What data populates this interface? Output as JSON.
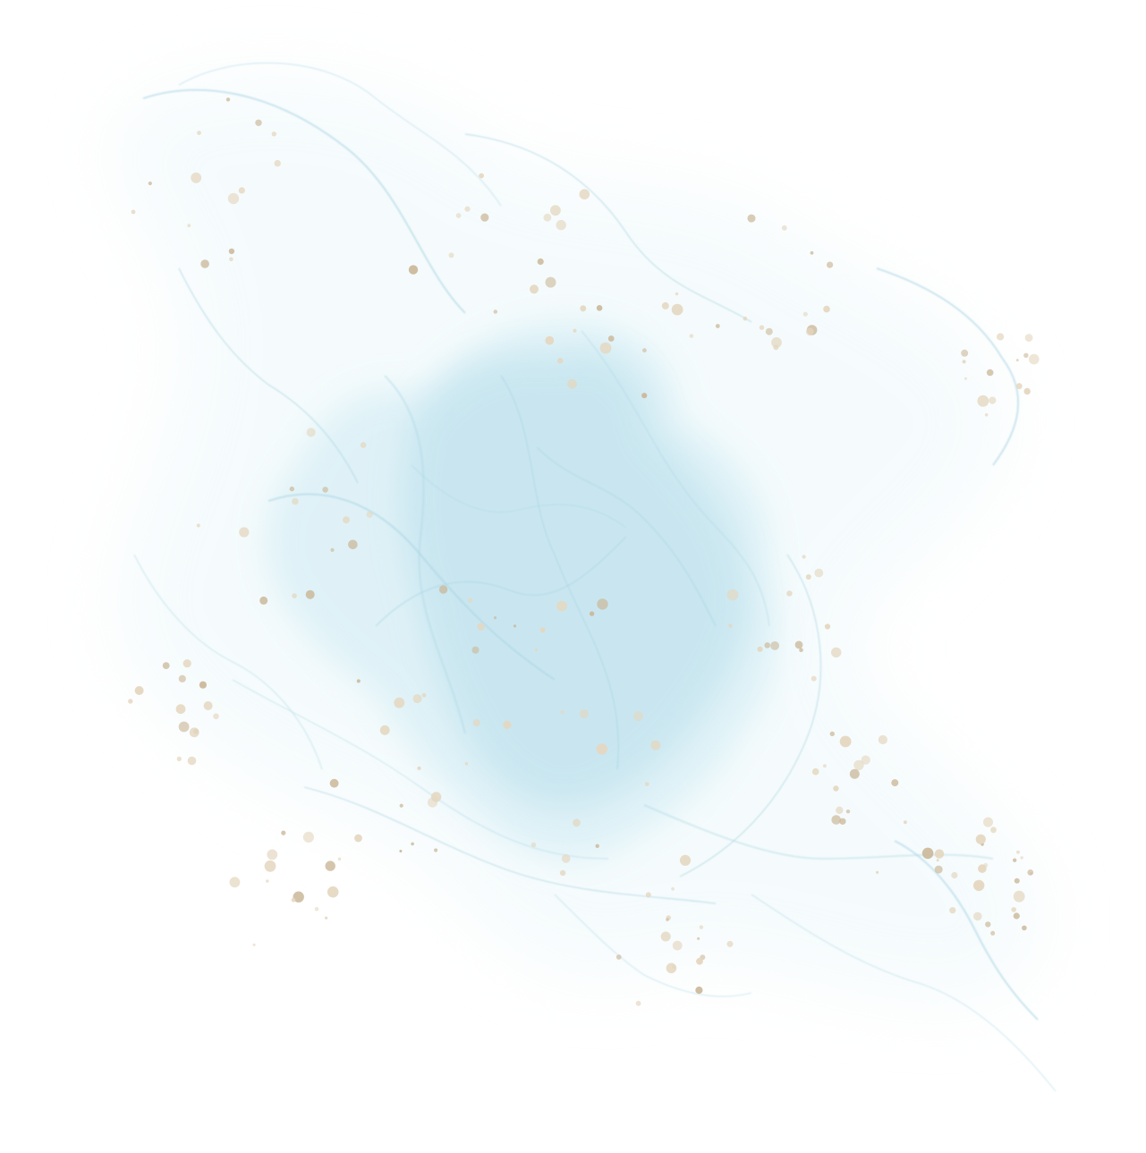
{
  "artwork": {
    "subject": "watercolor-ink-splash",
    "colors": {
      "background": "#ffffff",
      "wash_light": "#eef8fb",
      "wash_mid": "#d6eef5",
      "wash_deep": "#c2e3ee",
      "vein": "#a9d6e4",
      "gold": "#e4d7c0",
      "gold_dark": "#cbb89a"
    }
  }
}
